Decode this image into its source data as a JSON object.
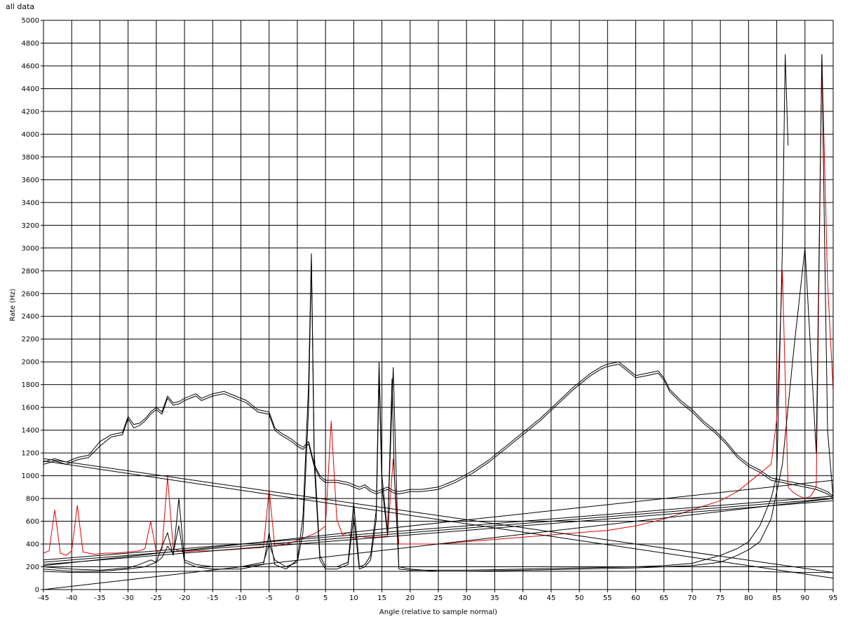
{
  "chart_data": {
    "type": "line",
    "title": "all data",
    "xlabel": "Angle (relative to sample normal)",
    "ylabel": "Rate (Hz)",
    "xlim": [
      -45,
      95
    ],
    "ylim": [
      0,
      5000
    ],
    "x_ticks": [
      -45,
      -40,
      -35,
      -30,
      -25,
      -20,
      -15,
      -10,
      -5,
      0,
      5,
      10,
      15,
      20,
      25,
      30,
      35,
      40,
      45,
      50,
      55,
      60,
      65,
      70,
      75,
      80,
      85,
      90,
      95
    ],
    "y_ticks": [
      0,
      200,
      400,
      600,
      800,
      1000,
      1200,
      1400,
      1600,
      1800,
      2000,
      2200,
      2400,
      2600,
      2800,
      3000,
      3200,
      3400,
      3600,
      3800,
      4000,
      4200,
      4400,
      4600,
      4800,
      5000
    ],
    "grid": true,
    "colors": {
      "primary": "#000000",
      "highlight": "#e00000",
      "grid": "#000000"
    },
    "series": [
      {
        "color": "#000000",
        "x": [
          -45,
          -43,
          -41,
          -39,
          -37,
          -35,
          -33,
          -31,
          -30,
          -29,
          -28,
          -27,
          -26,
          -25,
          -24,
          -23,
          -22,
          -21,
          -20,
          -18,
          -17,
          -15,
          -13,
          -11,
          -9,
          -7,
          -5,
          -4,
          -3,
          -2,
          -1,
          0,
          1,
          2,
          3,
          4,
          5,
          7,
          9,
          11,
          12,
          13,
          14,
          15,
          16,
          17,
          18,
          19,
          20,
          22,
          25,
          28,
          31,
          34,
          37,
          40,
          43,
          46,
          49,
          52,
          54,
          55,
          57,
          58,
          60,
          62,
          64,
          65,
          66,
          68,
          70,
          72,
          74,
          76,
          78,
          80,
          82,
          84,
          86,
          88,
          90,
          92,
          94,
          95
        ],
        "y": [
          1120,
          1150,
          1120,
          1160,
          1180,
          1300,
          1360,
          1380,
          1520,
          1450,
          1460,
          1500,
          1560,
          1600,
          1560,
          1700,
          1640,
          1650,
          1680,
          1720,
          1680,
          1720,
          1740,
          1700,
          1660,
          1580,
          1560,
          1420,
          1380,
          1350,
          1320,
          1280,
          1250,
          1300,
          1100,
          1000,
          960,
          960,
          940,
          900,
          920,
          880,
          860,
          880,
          900,
          870,
          860,
          870,
          880,
          880,
          900,
          960,
          1040,
          1140,
          1260,
          1380,
          1500,
          1640,
          1780,
          1900,
          1960,
          1980,
          2000,
          1960,
          1880,
          1900,
          1920,
          1860,
          1760,
          1660,
          1580,
          1480,
          1400,
          1300,
          1180,
          1100,
          1050,
          980,
          960,
          940,
          920,
          900,
          860,
          820
        ]
      },
      {
        "color": "#000000",
        "x": [
          -45,
          -43,
          -41,
          -39,
          -37,
          -35,
          -33,
          -31,
          -30,
          -29,
          -28,
          -27,
          -26,
          -25,
          -24,
          -23,
          -22,
          -21,
          -20,
          -18,
          -17,
          -15,
          -13,
          -11,
          -9,
          -7,
          -5,
          -4,
          -3,
          -2,
          -1,
          0,
          1,
          2,
          3,
          4,
          5,
          7,
          9,
          11,
          12,
          13,
          14,
          15,
          16,
          17,
          18,
          19,
          20,
          22,
          25,
          28,
          31,
          34,
          37,
          40,
          43,
          46,
          49,
          52,
          54,
          55,
          57,
          58,
          60,
          62,
          64,
          65,
          66,
          68,
          70,
          72,
          74,
          76,
          78,
          80,
          82,
          84,
          86,
          88,
          90,
          92,
          94,
          95
        ],
        "y": [
          1100,
          1130,
          1100,
          1140,
          1160,
          1260,
          1340,
          1360,
          1500,
          1420,
          1440,
          1480,
          1540,
          1580,
          1540,
          1680,
          1620,
          1630,
          1660,
          1700,
          1660,
          1700,
          1720,
          1680,
          1640,
          1560,
          1540,
          1400,
          1360,
          1330,
          1300,
          1260,
          1230,
          1280,
          1080,
          980,
          940,
          940,
          920,
          880,
          900,
          860,
          840,
          860,
          880,
          850,
          840,
          850,
          860,
          860,
          880,
          940,
          1020,
          1120,
          1240,
          1360,
          1480,
          1620,
          1760,
          1880,
          1940,
          1960,
          1980,
          1940,
          1860,
          1880,
          1900,
          1840,
          1740,
          1640,
          1560,
          1460,
          1380,
          1280,
          1160,
          1080,
          1030,
          960,
          940,
          920,
          900,
          880,
          840,
          800
        ]
      },
      {
        "color": "#e00000",
        "x": [
          -45,
          -44,
          -43,
          -42,
          -41,
          -40,
          -39,
          -38,
          -36,
          -34,
          -32,
          -30,
          -28,
          -27,
          -26,
          -25,
          -24,
          -23,
          -22,
          -21,
          -20,
          -18,
          -15,
          -12,
          -9,
          -6,
          -5,
          -4,
          -2,
          0,
          1,
          2,
          3,
          4,
          5,
          6,
          7,
          8,
          9,
          10,
          11,
          12,
          14,
          16,
          17,
          18,
          20,
          25,
          30,
          35,
          40,
          45,
          50,
          55,
          60,
          65,
          70,
          75,
          78,
          80,
          82,
          84,
          85,
          86,
          87,
          88,
          89,
          90,
          91,
          92,
          93,
          94,
          95
        ],
        "y": [
          320,
          340,
          700,
          320,
          300,
          340,
          740,
          330,
          310,
          320,
          320,
          330,
          340,
          360,
          600,
          330,
          350,
          990,
          360,
          340,
          330,
          340,
          340,
          350,
          360,
          370,
          880,
          380,
          400,
          430,
          450,
          470,
          490,
          520,
          560,
          1480,
          620,
          480,
          500,
          440,
          470,
          460,
          460,
          470,
          1150,
          400,
          400,
          400,
          420,
          440,
          460,
          480,
          500,
          520,
          560,
          620,
          700,
          780,
          860,
          940,
          1020,
          1100,
          1500,
          2800,
          900,
          850,
          820,
          800,
          820,
          900,
          4700,
          2700,
          1750
        ]
      },
      {
        "color": "#000000",
        "x": [
          -45,
          -40,
          -35,
          -30,
          -27,
          -25,
          -24,
          -23,
          -22,
          -21,
          -20,
          -18,
          -15,
          -10,
          -6,
          -5,
          -4,
          -2,
          0,
          1,
          2,
          2.5,
          3,
          4,
          5,
          7,
          9,
          10,
          11,
          12,
          13,
          14,
          14.5,
          15,
          16,
          17,
          18,
          20,
          25,
          30,
          40,
          50,
          60,
          65,
          70,
          75,
          78,
          80,
          82,
          84,
          85,
          86,
          86.5,
          87
        ],
        "y": [
          180,
          160,
          160,
          180,
          200,
          240,
          280,
          380,
          320,
          560,
          240,
          200,
          180,
          180,
          220,
          500,
          220,
          180,
          260,
          640,
          1800,
          2950,
          1200,
          300,
          200,
          200,
          240,
          760,
          200,
          220,
          300,
          700,
          2000,
          1000,
          500,
          1950,
          180,
          170,
          170,
          170,
          180,
          190,
          200,
          210,
          230,
          300,
          360,
          420,
          560,
          800,
          1000,
          3000,
          4700,
          3900
        ]
      },
      {
        "color": "#000000",
        "x": [
          -45,
          -40,
          -35,
          -30,
          -28,
          -26,
          -25,
          -24,
          -23,
          -22,
          -21,
          -20,
          -18,
          -15,
          -10,
          -6,
          -5,
          -4,
          -2,
          0,
          1,
          2,
          2.5,
          3,
          4,
          5,
          7,
          9,
          10,
          11,
          12,
          13,
          14,
          14.5,
          15,
          16,
          16.8,
          17.2,
          18,
          20,
          25,
          30,
          40,
          50,
          60,
          65,
          70,
          75,
          78,
          80,
          82,
          84,
          86,
          88,
          90,
          92,
          93,
          93.5,
          94,
          95
        ],
        "y": [
          200,
          180,
          170,
          190,
          220,
          260,
          240,
          380,
          500,
          300,
          800,
          260,
          220,
          200,
          200,
          240,
          400,
          260,
          200,
          240,
          500,
          1600,
          2900,
          1100,
          260,
          180,
          180,
          220,
          640,
          180,
          200,
          260,
          620,
          1880,
          900,
          480,
          1850,
          1000,
          200,
          180,
          160,
          160,
          170,
          180,
          190,
          200,
          210,
          240,
          300,
          350,
          420,
          620,
          1100,
          2100,
          3000,
          1200,
          4700,
          3000,
          1400,
          800
        ]
      },
      {
        "color": "#000000",
        "x": [
          -45,
          -40,
          -30,
          -20,
          -10,
          0,
          10,
          20,
          30,
          40,
          50,
          60,
          70,
          80,
          90,
          95
        ],
        "y": [
          160,
          150,
          150,
          160,
          160,
          160,
          160,
          160,
          160,
          160,
          160,
          160,
          160,
          160,
          150,
          150
        ]
      },
      {
        "color": "#000000",
        "x": [
          -45,
          95
        ],
        "y": [
          1150,
          150
        ]
      },
      {
        "color": "#000000",
        "x": [
          -45,
          95
        ],
        "y": [
          1130,
          100
        ]
      },
      {
        "color": "#000000",
        "x": [
          -45,
          95
        ],
        "y": [
          0,
          800
        ]
      },
      {
        "color": "#000000",
        "x": [
          -45,
          95
        ],
        "y": [
          210,
          960
        ]
      },
      {
        "color": "#000000",
        "x": [
          -45,
          95
        ],
        "y": [
          260,
          820
        ]
      },
      {
        "color": "#000000",
        "x": [
          -45,
          95
        ],
        "y": [
          240,
          800
        ]
      },
      {
        "color": "#000000",
        "x": [
          -45,
          95
        ],
        "y": [
          220,
          780
        ]
      }
    ]
  }
}
